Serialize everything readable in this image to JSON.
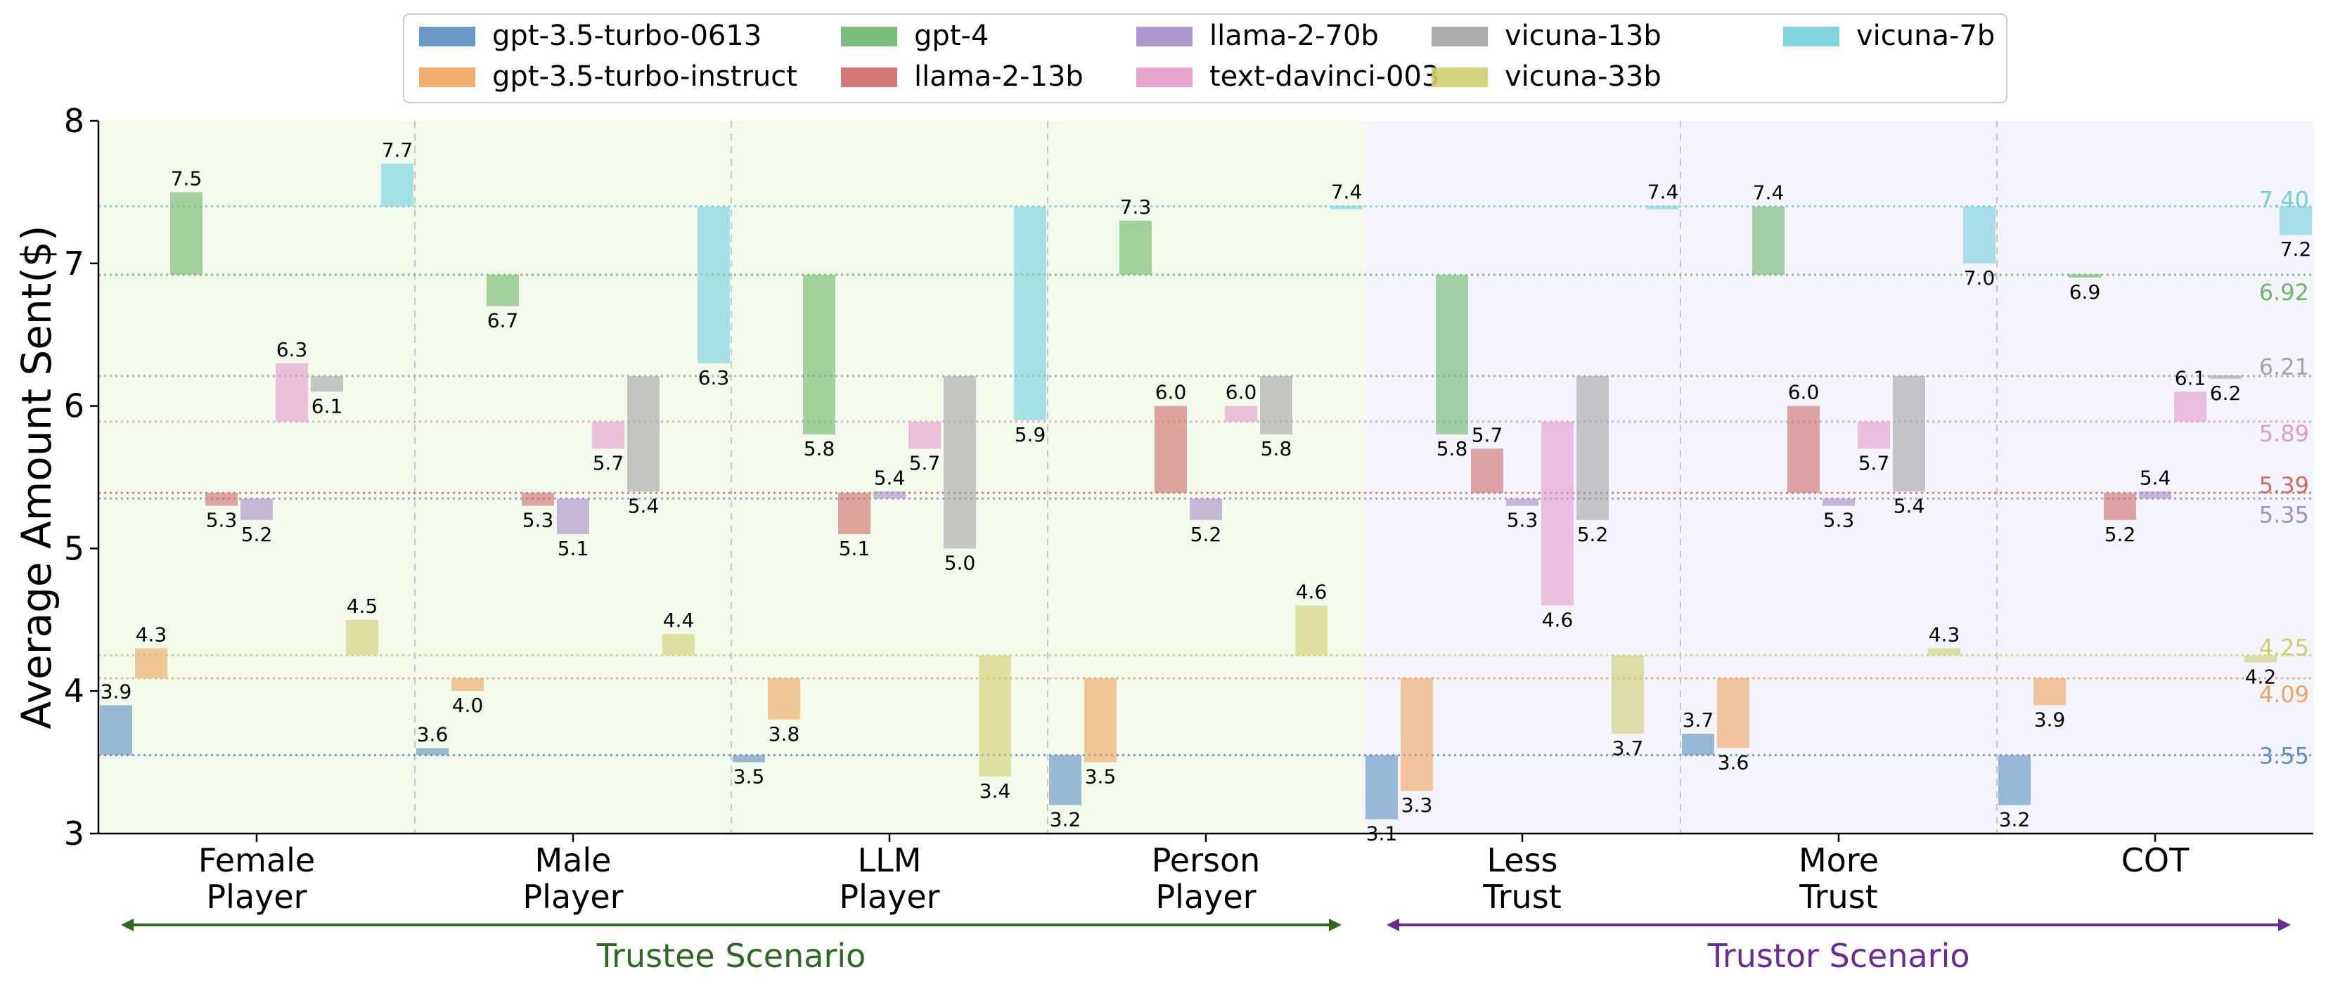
{
  "chart_data": {
    "type": "bar",
    "ylabel": "Average Amount Sent($)",
    "ylim": [
      3,
      8
    ],
    "yticks": [
      3,
      4,
      5,
      6,
      7,
      8
    ],
    "categories": [
      "Female\nPlayer",
      "Male\nPlayer",
      "LLM\nPlayer",
      "Person\nPlayer",
      "Less\nTrust",
      "More\nTrust",
      "COT"
    ],
    "groups": [
      {
        "label": "Trustee Scenario",
        "color": "#2d6a1f",
        "categories": [
          0,
          1,
          2,
          3
        ]
      },
      {
        "label": "Trustor Scenario",
        "color": "#6a2a9a",
        "categories": [
          4,
          5,
          6
        ]
      }
    ],
    "series": [
      {
        "name": "gpt-3.5-turbo-0613",
        "color": "#5b8ec0",
        "baseline": 3.55,
        "baseline_label": "3.55",
        "values": [
          3.9,
          3.6,
          3.5,
          3.2,
          3.1,
          3.7,
          3.2
        ],
        "labels": [
          "3.9",
          "3.6",
          "3.5",
          "3.2",
          "3.1",
          "3.7",
          "3.2"
        ]
      },
      {
        "name": "gpt-3.5-turbo-instruct",
        "color": "#f0a35e",
        "baseline": 4.09,
        "baseline_label": "4.09",
        "values": [
          4.3,
          4.0,
          3.8,
          3.5,
          3.3,
          3.6,
          3.9
        ],
        "labels": [
          "4.3",
          "4.0",
          "3.8",
          "3.5",
          "3.3",
          "3.6",
          "3.9"
        ]
      },
      {
        "name": "gpt-4",
        "color": "#6cb56a",
        "baseline": 6.92,
        "baseline_label": "6.92",
        "values": [
          7.5,
          6.7,
          5.8,
          7.3,
          5.8,
          7.4,
          6.9
        ],
        "labels": [
          "7.5",
          "6.7",
          "5.8",
          "7.3",
          "5.8",
          "7.4",
          "6.9"
        ]
      },
      {
        "name": "llama-2-13b",
        "color": "#cf6b67",
        "baseline": 5.39,
        "baseline_label": "5.39",
        "values": [
          5.3,
          5.3,
          5.1,
          6.0,
          5.7,
          6.0,
          5.2
        ],
        "labels": [
          "5.3",
          "5.3",
          "5.1",
          "6.0",
          "5.7",
          "6.0",
          "5.2"
        ]
      },
      {
        "name": "llama-2-70b",
        "color": "#a68cc9",
        "baseline": 5.35,
        "baseline_label": "5.35",
        "values": [
          5.2,
          5.1,
          5.4,
          5.2,
          5.3,
          5.3,
          5.4
        ],
        "labels": [
          "5.2",
          "5.1",
          "5.4",
          "5.2",
          "5.3",
          "5.3",
          "5.4"
        ]
      },
      {
        "name": "text-davinci-003",
        "color": "#e39ac9",
        "baseline": 5.89,
        "baseline_label": "5.89",
        "values": [
          6.3,
          5.7,
          5.7,
          6.0,
          4.6,
          5.7,
          6.1
        ],
        "labels": [
          "6.3",
          "5.7",
          "5.7",
          "6.0",
          "4.6",
          "5.7",
          "6.1"
        ]
      },
      {
        "name": "vicuna-13b",
        "color": "#a3a3a3",
        "baseline": 6.21,
        "baseline_label": "6.21",
        "values": [
          6.1,
          5.4,
          5.0,
          5.8,
          5.2,
          5.4,
          6.2
        ],
        "labels": [
          "6.1",
          "5.4",
          "5.0",
          "5.8",
          "5.2",
          "5.4",
          "6.2"
        ]
      },
      {
        "name": "vicuna-33b",
        "color": "#cfcf6e",
        "baseline": 4.25,
        "baseline_label": "4.25",
        "values": [
          4.5,
          4.4,
          3.4,
          4.6,
          3.7,
          4.3,
          4.2
        ],
        "labels": [
          "4.5",
          "4.4",
          "3.4",
          "4.6",
          "3.7",
          "4.3",
          "4.2"
        ]
      },
      {
        "name": "vicuna-7b",
        "color": "#72cfdc",
        "baseline": 7.4,
        "baseline_label": "7.40",
        "values": [
          7.7,
          6.3,
          5.9,
          7.4,
          7.4,
          7.0,
          7.2
        ],
        "labels": [
          "7.7",
          "6.3",
          "5.9",
          "7.4",
          "7.4",
          "7.0",
          "7.2"
        ]
      }
    ],
    "legend_position": "top-center",
    "grid": "vertical dashed separators",
    "background_colors": {
      "trustee": "#f2fbeb",
      "trustor": "#f3f4fc"
    }
  }
}
